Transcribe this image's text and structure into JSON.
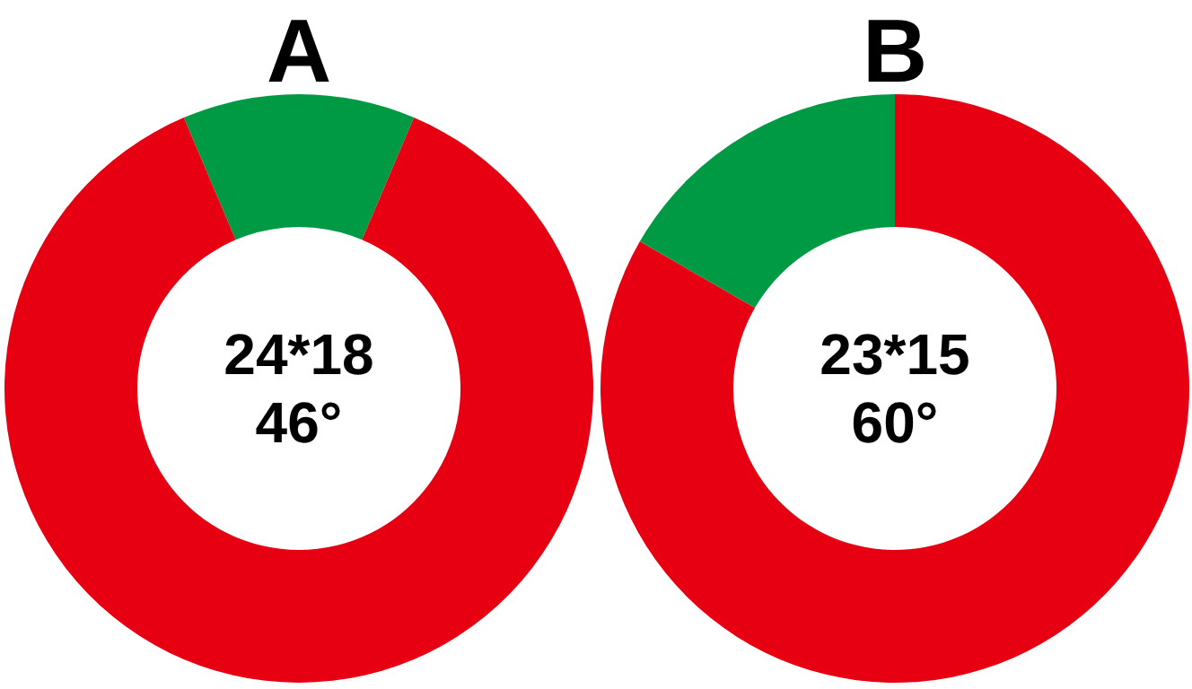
{
  "chart_data": [
    {
      "type": "donut",
      "title": "A",
      "categories": [
        null,
        null
      ],
      "values": [
        12.78,
        87.22
      ],
      "colors": [
        "#009a44",
        "#e60012"
      ],
      "annotations": [
        "24*18",
        "46°"
      ]
    },
    {
      "type": "donut",
      "title": "B",
      "categories": [
        null,
        null
      ],
      "values": [
        83.33,
        16.67
      ],
      "colors": [
        "#e60012",
        "#009a44"
      ],
      "annotations": [
        "23*15",
        "60°"
      ]
    }
  ]
}
